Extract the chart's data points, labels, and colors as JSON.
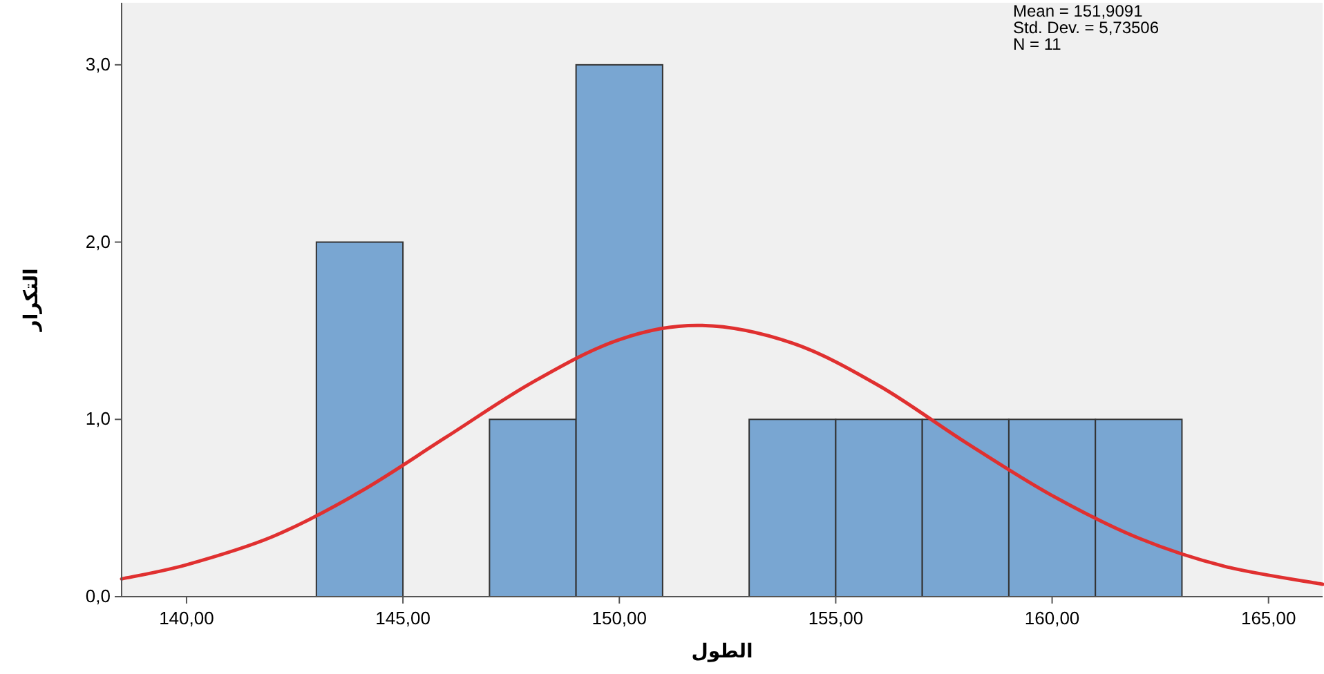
{
  "chart_data": {
    "type": "histogram",
    "xlabel": "الطول",
    "ylabel": "التكرار",
    "annotations": [
      "Mean = 151,9091",
      "Std. Dev. = 5,73506",
      "N = 11"
    ],
    "bins": [
      143,
      145,
      147,
      149,
      151,
      153,
      155,
      157,
      159,
      161,
      163
    ],
    "series": [
      {
        "color": "#79a6d2",
        "values": [
          2,
          0,
          1,
          3,
          0,
          1,
          1,
          1,
          1,
          1
        ]
      },
      {
        "type": "line",
        "color": "#e03030",
        "x": [
          138.5,
          140,
          142,
          144,
          146,
          148,
          150,
          151.9,
          154,
          156,
          158,
          160,
          162,
          164,
          166.25
        ],
        "values": [
          0.1,
          0.18,
          0.34,
          0.59,
          0.9,
          1.21,
          1.45,
          1.53,
          1.43,
          1.19,
          0.87,
          0.57,
          0.33,
          0.17,
          0.07
        ]
      }
    ],
    "xlim": [
      138.5,
      166.25
    ],
    "ylim": [
      0,
      3.35
    ],
    "xticks": [
      {
        "value": 140,
        "label": "140,00"
      },
      {
        "value": 145,
        "label": "145,00"
      },
      {
        "value": 150,
        "label": "150,00"
      },
      {
        "value": 155,
        "label": "155,00"
      },
      {
        "value": 160,
        "label": "160,00"
      },
      {
        "value": 165,
        "label": "165,00"
      }
    ],
    "yticks": [
      {
        "value": 0,
        "label": "0,0"
      },
      {
        "value": 1,
        "label": "1,0"
      },
      {
        "value": 2,
        "label": "2,0"
      },
      {
        "value": 3,
        "label": "3,0"
      }
    ],
    "grid": false
  }
}
